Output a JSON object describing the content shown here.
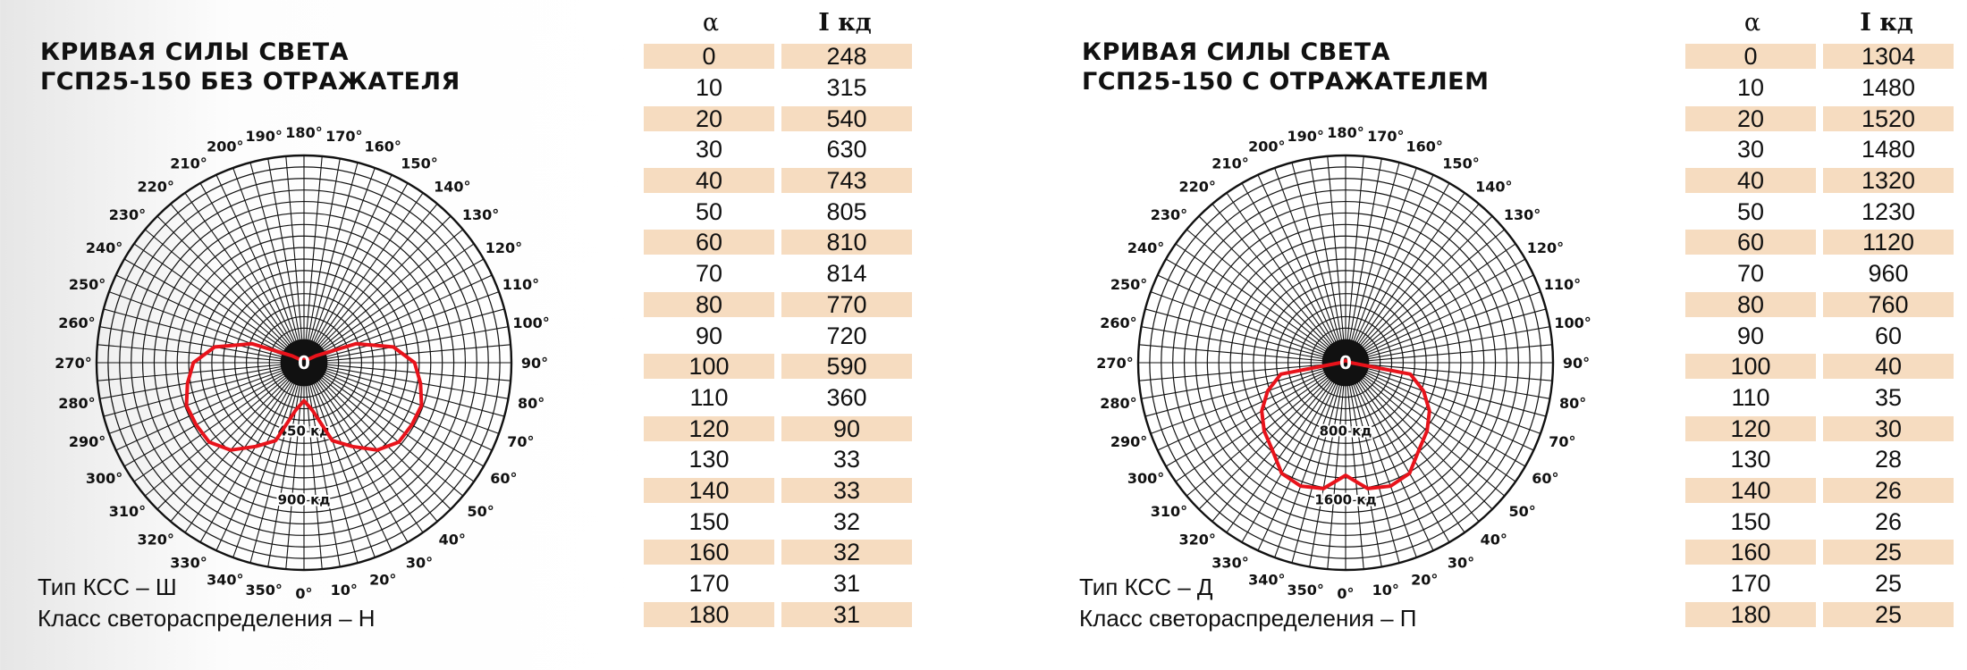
{
  "charts_meta": {
    "curve_color": "#e8131b",
    "row_shade": "#f6dcc0"
  },
  "chart_data": [
    {
      "type": "polar",
      "title": [
        "КРИВАЯ СИЛЫ СВЕТА",
        "ГСП25-150 БЕЗ ОТРАЖАТЕЛЯ"
      ],
      "angle_labels": [
        "0°",
        "10°",
        "20°",
        "30°",
        "40°",
        "50°",
        "60°",
        "70°",
        "80°",
        "90°",
        "100°",
        "110°",
        "120°",
        "130°",
        "140°",
        "150°",
        "160°",
        "170°",
        "180°",
        "190°",
        "200°",
        "210°",
        "220°",
        "230°",
        "240°",
        "250°",
        "260°",
        "270°",
        "280°",
        "290°",
        "300°",
        "310°",
        "320°",
        "330°",
        "340°",
        "350°"
      ],
      "center_label": "0",
      "ring_labels": [
        {
          "label": "450 кд",
          "value": 450
        },
        {
          "label": "900 кд",
          "value": 900
        }
      ],
      "r_max": 1350,
      "curve_color": "#e8131b",
      "table_header": {
        "alpha": "α",
        "intensity": "I кд"
      },
      "alpha": [
        "0",
        "10",
        "20",
        "30",
        "40",
        "50",
        "60",
        "70",
        "80",
        "90",
        "100",
        "110",
        "120",
        "130",
        "140",
        "150",
        "160",
        "170",
        "180"
      ],
      "intensity": [
        "248",
        "315",
        "540",
        "630",
        "743",
        "805",
        "810",
        "814",
        "770",
        "720",
        "590",
        "360",
        "90",
        "33",
        "33",
        "32",
        "32",
        "31",
        "31"
      ],
      "notes": [
        "Тип КСС – Ш",
        "Класс светораспределения – Н"
      ]
    },
    {
      "type": "polar",
      "title": [
        "КРИВАЯ СИЛЫ СВЕТА",
        "ГСП25-150 С ОТРАЖАТЕЛЕМ"
      ],
      "angle_labels": [
        "0°",
        "10°",
        "20°",
        "30°",
        "40°",
        "50°",
        "60°",
        "70°",
        "80°",
        "90°",
        "100°",
        "110°",
        "120°",
        "130°",
        "140°",
        "150°",
        "160°",
        "170°",
        "180°",
        "190°",
        "200°",
        "210°",
        "220°",
        "230°",
        "240°",
        "250°",
        "260°",
        "270°",
        "280°",
        "290°",
        "300°",
        "310°",
        "320°",
        "330°",
        "340°",
        "350°"
      ],
      "center_label": "0",
      "ring_labels": [
        {
          "label": "800 кд",
          "value": 800
        },
        {
          "label": "1600 кд",
          "value": 1600
        }
      ],
      "r_max": 2400,
      "curve_color": "#e8131b",
      "table_header": {
        "alpha": "α",
        "intensity": "I кд"
      },
      "alpha": [
        "0",
        "10",
        "20",
        "30",
        "40",
        "50",
        "60",
        "70",
        "80",
        "90",
        "100",
        "110",
        "120",
        "130",
        "140",
        "150",
        "160",
        "170",
        "180"
      ],
      "intensity": [
        "1304",
        "1480",
        "1520",
        "1480",
        "1320",
        "1230",
        "1120",
        "960",
        "760",
        "60",
        "40",
        "35",
        "30",
        "28",
        "26",
        "26",
        "25",
        "25",
        "25"
      ],
      "notes": [
        "Тип КСС – Д",
        "Класс светораспределения – П"
      ]
    }
  ]
}
